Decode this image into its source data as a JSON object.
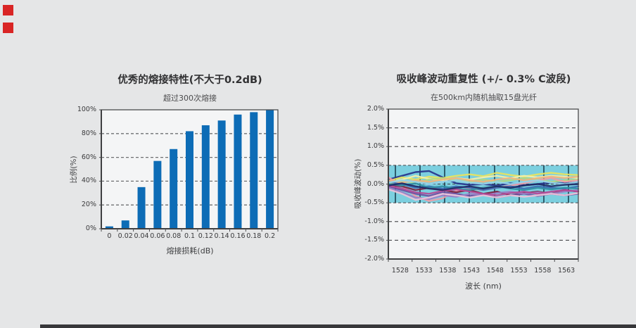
{
  "page": {
    "background_color": "#e5e6e7",
    "accent_square_color": "#d92525",
    "footer_bar_color": "#37373a"
  },
  "chart_data": [
    {
      "type": "bar",
      "title": "优秀的熔接特性(不大于0.2dB)",
      "subtitle": "超过300次熔接",
      "xlabel": "熔接损耗(dB)",
      "ylabel": "比例(%)",
      "categories": [
        "0",
        "0.02",
        "0.04",
        "0.06",
        "0.08",
        "0.1",
        "0.12",
        "0.14",
        "0.16",
        "0.18",
        "0.2"
      ],
      "values": [
        2,
        7,
        35,
        57,
        67,
        82,
        87,
        91,
        96,
        98,
        100
      ],
      "yticks": [
        "0%",
        "20%",
        "40%",
        "60%",
        "80%",
        "100%"
      ],
      "ylim": [
        0,
        100
      ],
      "grid": "dashed-horizontal",
      "bar_color": "#0d6cb6",
      "plot_bg": "#f4f5f6"
    },
    {
      "type": "line",
      "title": "吸收峰波动重复性 (+/- 0.3% C波段)",
      "subtitle": "在500km内随机抽取15盘光纤",
      "xlabel": "波长 (nm)",
      "ylabel": "吸收峰波动(%)",
      "xticks": [
        "1528",
        "1533",
        "1538",
        "1543",
        "1548",
        "1553",
        "1558",
        "1563"
      ],
      "yticks": [
        "2.0%",
        "1.5%",
        "1.0%",
        "0.5%",
        "0.0%",
        "-0.5%",
        "-1.0%",
        "-1.5%",
        "-2.0%"
      ],
      "ylim": [
        -2.0,
        2.0
      ],
      "x_range": [
        1526,
        1566
      ],
      "grid": "dashed-horizontal",
      "plot_bg": "#f4f5f6",
      "band": {
        "from": -0.5,
        "to": 0.5,
        "color": "#7ccfdf",
        "line_color": "#2e5d6d"
      },
      "series": [
        {
          "color": "#27348b",
          "values": [
            0.12,
            0.22,
            0.32,
            0.35,
            0.18,
            0.02,
            -0.02,
            0.0,
            -0.04,
            0.02,
            -0.03,
            0.0,
            0.04,
            0.02,
            0.05
          ]
        },
        {
          "color": "#e9e45c",
          "values": [
            0.08,
            0.18,
            0.12,
            0.2,
            0.16,
            0.22,
            0.26,
            0.21,
            0.3,
            0.24,
            0.2,
            0.26,
            0.3,
            0.26,
            0.24
          ]
        },
        {
          "color": "#f4f0a8",
          "values": [
            0.04,
            0.12,
            0.22,
            0.14,
            0.1,
            0.16,
            0.12,
            0.18,
            0.22,
            0.16,
            0.22,
            0.18,
            0.22,
            0.2,
            0.16
          ]
        },
        {
          "color": "#b5d97e",
          "values": [
            0.0,
            0.08,
            0.04,
            0.12,
            0.16,
            0.1,
            0.06,
            0.12,
            0.06,
            0.1,
            0.16,
            0.12,
            0.06,
            0.1,
            0.12
          ]
        },
        {
          "color": "#f19ca6",
          "values": [
            0.18,
            -0.05,
            -0.32,
            -0.45,
            -0.38,
            -0.18,
            -0.12,
            -0.16,
            -0.1,
            -0.04,
            0.02,
            0.1,
            0.16,
            0.06,
            0.1
          ]
        },
        {
          "color": "#7c1f3e",
          "values": [
            -0.02,
            -0.06,
            -0.16,
            -0.1,
            -0.16,
            -0.22,
            -0.16,
            -0.26,
            -0.2,
            -0.3,
            -0.24,
            -0.2,
            -0.26,
            -0.16,
            -0.2
          ]
        },
        {
          "color": "#6b4fa1",
          "values": [
            -0.06,
            -0.16,
            -0.26,
            -0.32,
            -0.22,
            -0.26,
            -0.32,
            -0.26,
            -0.36,
            -0.3,
            -0.26,
            -0.32,
            -0.26,
            -0.3,
            -0.26
          ]
        },
        {
          "color": "#9a7ec4",
          "values": [
            -0.1,
            -0.22,
            -0.36,
            -0.4,
            -0.3,
            -0.34,
            -0.26,
            -0.3,
            -0.24,
            -0.2,
            -0.26,
            -0.22,
            -0.26,
            -0.2,
            -0.16
          ]
        },
        {
          "color": "#3c6cb4",
          "values": [
            0.06,
            0.0,
            -0.1,
            -0.06,
            -0.12,
            -0.06,
            -0.1,
            -0.16,
            -0.1,
            -0.06,
            -0.12,
            -0.06,
            -0.1,
            -0.12,
            -0.06
          ]
        },
        {
          "color": "#2f8fa3",
          "values": [
            0.0,
            -0.04,
            0.02,
            -0.1,
            -0.06,
            -0.12,
            -0.16,
            -0.1,
            -0.06,
            -0.12,
            -0.16,
            -0.1,
            -0.14,
            -0.1,
            -0.12
          ]
        },
        {
          "color": "#b44a97",
          "values": [
            -0.04,
            -0.12,
            -0.22,
            -0.26,
            -0.18,
            -0.14,
            -0.2,
            -0.26,
            -0.3,
            -0.24,
            -0.2,
            -0.26,
            -0.2,
            -0.16,
            -0.2
          ]
        },
        {
          "color": "#f0b47e",
          "values": [
            0.1,
            0.04,
            0.1,
            0.06,
            0.12,
            0.16,
            0.1,
            0.06,
            0.12,
            0.16,
            0.1,
            0.16,
            0.2,
            0.16,
            0.2
          ]
        },
        {
          "color": "#97d2ea",
          "values": [
            0.04,
            0.1,
            0.06,
            0.0,
            0.06,
            0.1,
            0.04,
            0.0,
            0.06,
            0.0,
            0.06,
            0.1,
            0.04,
            0.0,
            0.06
          ]
        },
        {
          "color": "#eec3d9",
          "values": [
            -0.14,
            -0.26,
            -0.42,
            -0.36,
            -0.26,
            -0.3,
            -0.36,
            -0.3,
            -0.36,
            -0.3,
            -0.34,
            -0.3,
            -0.26,
            -0.3,
            -0.24
          ]
        },
        {
          "color": "#1e2a66",
          "values": [
            -0.04,
            0.02,
            -0.06,
            -0.12,
            -0.16,
            -0.1,
            -0.06,
            -0.12,
            -0.06,
            -0.1,
            -0.04,
            0.0,
            -0.06,
            -0.02,
            0.0
          ]
        }
      ]
    }
  ]
}
